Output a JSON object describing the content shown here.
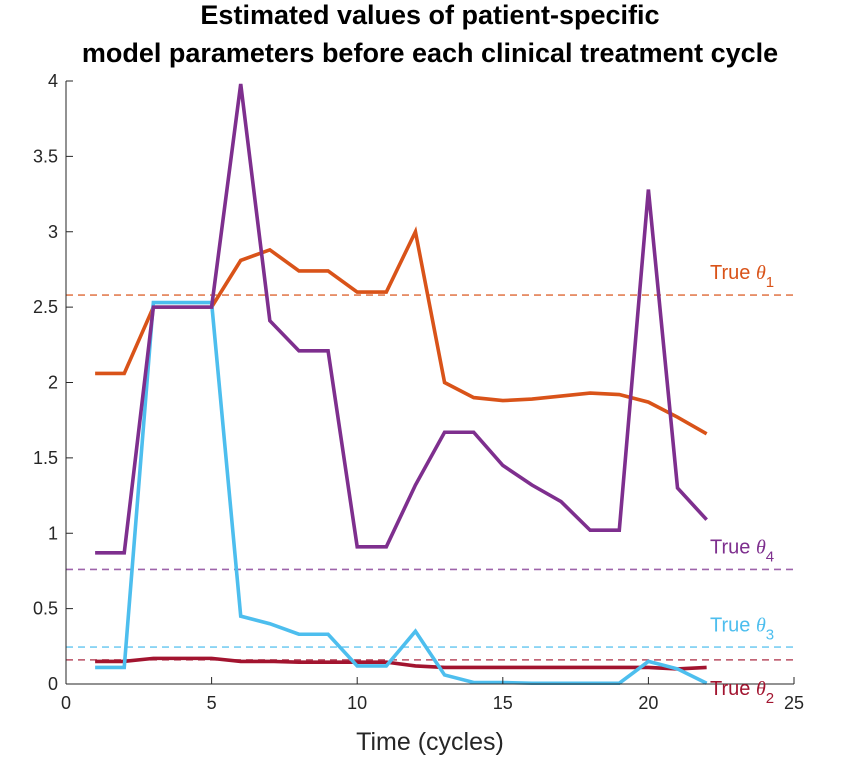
{
  "chart_data": {
    "type": "line",
    "title_lines": [
      "Estimated values of patient-specific",
      "model parameters before each clinical treatment cycle"
    ],
    "xlabel": "Time (cycles)",
    "ylabel": "",
    "xlim": [
      0,
      25
    ],
    "ylim": [
      0,
      4
    ],
    "xticks": [
      "0",
      "5",
      "10",
      "15",
      "20",
      "25"
    ],
    "yticks": [
      "0",
      "0.5",
      "1",
      "1.5",
      "2",
      "2.5",
      "3",
      "3.5",
      "4"
    ],
    "grid": false,
    "x": [
      1,
      2,
      3,
      4,
      5,
      6,
      7,
      8,
      9,
      10,
      11,
      12,
      13,
      14,
      15,
      16,
      17,
      18,
      19,
      20,
      21,
      22
    ],
    "series": [
      {
        "key": "theta1",
        "color": "#d95319",
        "values": [
          2.06,
          2.06,
          2.5,
          2.5,
          2.5,
          2.81,
          2.88,
          2.74,
          2.74,
          2.6,
          2.6,
          3.0,
          2.0,
          1.9,
          1.88,
          1.89,
          1.91,
          1.93,
          1.92,
          1.87,
          1.77,
          1.66
        ]
      },
      {
        "key": "theta2",
        "color": "#a2142f",
        "values": [
          0.15,
          0.15,
          0.17,
          0.17,
          0.17,
          0.15,
          0.15,
          0.145,
          0.145,
          0.145,
          0.145,
          0.12,
          0.11,
          0.11,
          0.11,
          0.11,
          0.11,
          0.11,
          0.11,
          0.11,
          0.1,
          0.11
        ]
      },
      {
        "key": "theta3",
        "color": "#4dbeee",
        "values": [
          0.11,
          0.11,
          2.53,
          2.53,
          2.53,
          0.45,
          0.4,
          0.33,
          0.33,
          0.12,
          0.12,
          0.35,
          0.06,
          0.01,
          0.01,
          0.005,
          0.005,
          0.005,
          0.005,
          0.15,
          0.1,
          0.005
        ]
      },
      {
        "key": "theta4",
        "color": "#7e2f8e",
        "values": [
          0.87,
          0.87,
          2.5,
          2.5,
          2.5,
          3.98,
          2.41,
          2.21,
          2.21,
          0.91,
          0.91,
          1.32,
          1.67,
          1.67,
          1.45,
          1.32,
          1.21,
          1.02,
          1.02,
          3.28,
          1.3,
          1.09
        ]
      }
    ],
    "reference_lines": [
      {
        "key": "theta1",
        "y": 2.58,
        "color": "#d95319",
        "label_main": "True ",
        "label_symbol": "θ",
        "label_sub": "1",
        "label_y": 2.74
      },
      {
        "key": "theta4",
        "y": 0.76,
        "color": "#7e2f8e",
        "label_main": "True ",
        "label_symbol": "θ",
        "label_sub": "4",
        "label_y": 0.92
      },
      {
        "key": "theta3",
        "y": 0.245,
        "color": "#4dbeee",
        "label_main": "True ",
        "label_symbol": "θ",
        "label_sub": "3",
        "label_y": 0.4
      },
      {
        "key": "theta2",
        "y": 0.16,
        "color": "#a2142f",
        "label_main": "True ",
        "label_symbol": "θ",
        "label_sub": "2",
        "label_y": -0.02
      }
    ]
  }
}
